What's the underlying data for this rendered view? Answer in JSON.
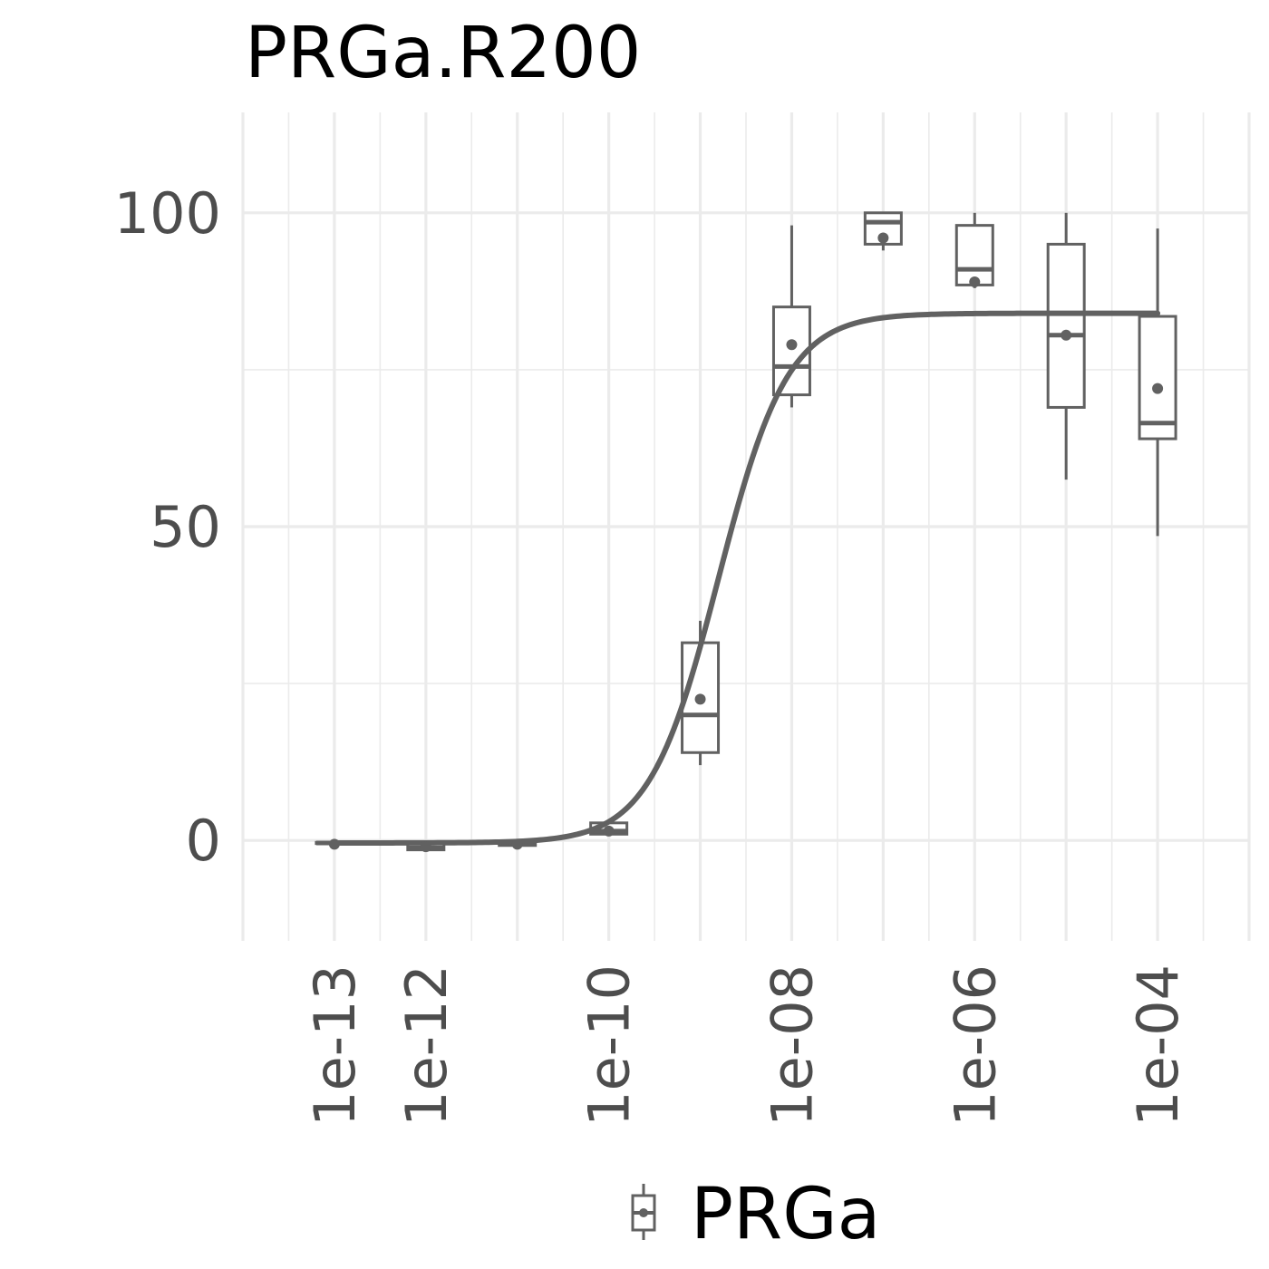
{
  "chart_data": {
    "type": "boxplot",
    "title": "PRGa.R200",
    "xlabel": "",
    "ylabel": "",
    "x_scale": "log10",
    "x_range": [
      1e-14,
      0.001
    ],
    "y_range": [
      -16,
      116
    ],
    "y_ticks": [
      0,
      50,
      100
    ],
    "y_tick_labels": [
      "0",
      "50",
      "100"
    ],
    "x_ticks": [
      1e-13,
      1e-12,
      1e-10,
      1e-08,
      1e-06,
      0.0001
    ],
    "x_tick_labels": [
      "1e-13",
      "1e-12",
      "1e-10",
      "1e-08",
      "1e-06",
      "1e-04"
    ],
    "grid": true,
    "legend": {
      "position": "bottom",
      "entries": [
        "PRGa"
      ]
    },
    "colors": {
      "series": "#616161",
      "grid": "#ebebeb",
      "text": "#4d4d4d"
    },
    "series": [
      {
        "name": "PRGa",
        "boxes": [
          {
            "x": 1e-13,
            "whisker_low": -0.6,
            "q1": -0.5,
            "median": -0.4,
            "q3": -0.3,
            "whisker_high": -0.2,
            "mean": -0.6
          },
          {
            "x": 1e-12,
            "whisker_low": -1.5,
            "q1": -1.5,
            "median": -1.2,
            "q3": -0.5,
            "whisker_high": -0.5,
            "mean": -1.0
          },
          {
            "x": 1e-11,
            "whisker_low": -0.9,
            "q1": -0.8,
            "median": -0.6,
            "q3": -0.3,
            "whisker_high": -0.2,
            "mean": -0.6
          },
          {
            "x": 1e-10,
            "whisker_low": 0.8,
            "q1": 1.0,
            "median": 1.5,
            "q3": 2.8,
            "whisker_high": 3.1,
            "mean": 1.5
          },
          {
            "x": 1e-09,
            "whisker_low": 12.0,
            "q1": 14.0,
            "median": 20.0,
            "q3": 31.5,
            "whisker_high": 35.0,
            "mean": 22.5
          },
          {
            "x": 1e-08,
            "whisker_low": 69.0,
            "q1": 71.0,
            "median": 75.5,
            "q3": 85.0,
            "whisker_high": 98.0,
            "mean": 79.0
          },
          {
            "x": 1e-07,
            "whisker_low": 94.0,
            "q1": 95.0,
            "median": 98.5,
            "q3": 100.0,
            "whisker_high": 100.0,
            "mean": 96.0
          },
          {
            "x": 1e-06,
            "whisker_low": 88.0,
            "q1": 88.5,
            "median": 91.0,
            "q3": 98.0,
            "whisker_high": 100.0,
            "mean": 89.0
          },
          {
            "x": 1e-05,
            "whisker_low": 57.5,
            "q1": 69.0,
            "median": 80.5,
            "q3": 95.0,
            "whisker_high": 100.0,
            "mean": 80.5
          },
          {
            "x": 0.0001,
            "whisker_low": 48.5,
            "q1": 64.0,
            "median": 66.5,
            "q3": 83.5,
            "whisker_high": 97.5,
            "mean": 72.0
          }
        ],
        "fit": {
          "model": "4-parameter logistic",
          "bottom": -0.4,
          "top": 84.0,
          "log_ec50": -8.8,
          "hill_slope": 1.15,
          "x_from": 1e-13,
          "x_to": 0.0001
        }
      }
    ]
  }
}
